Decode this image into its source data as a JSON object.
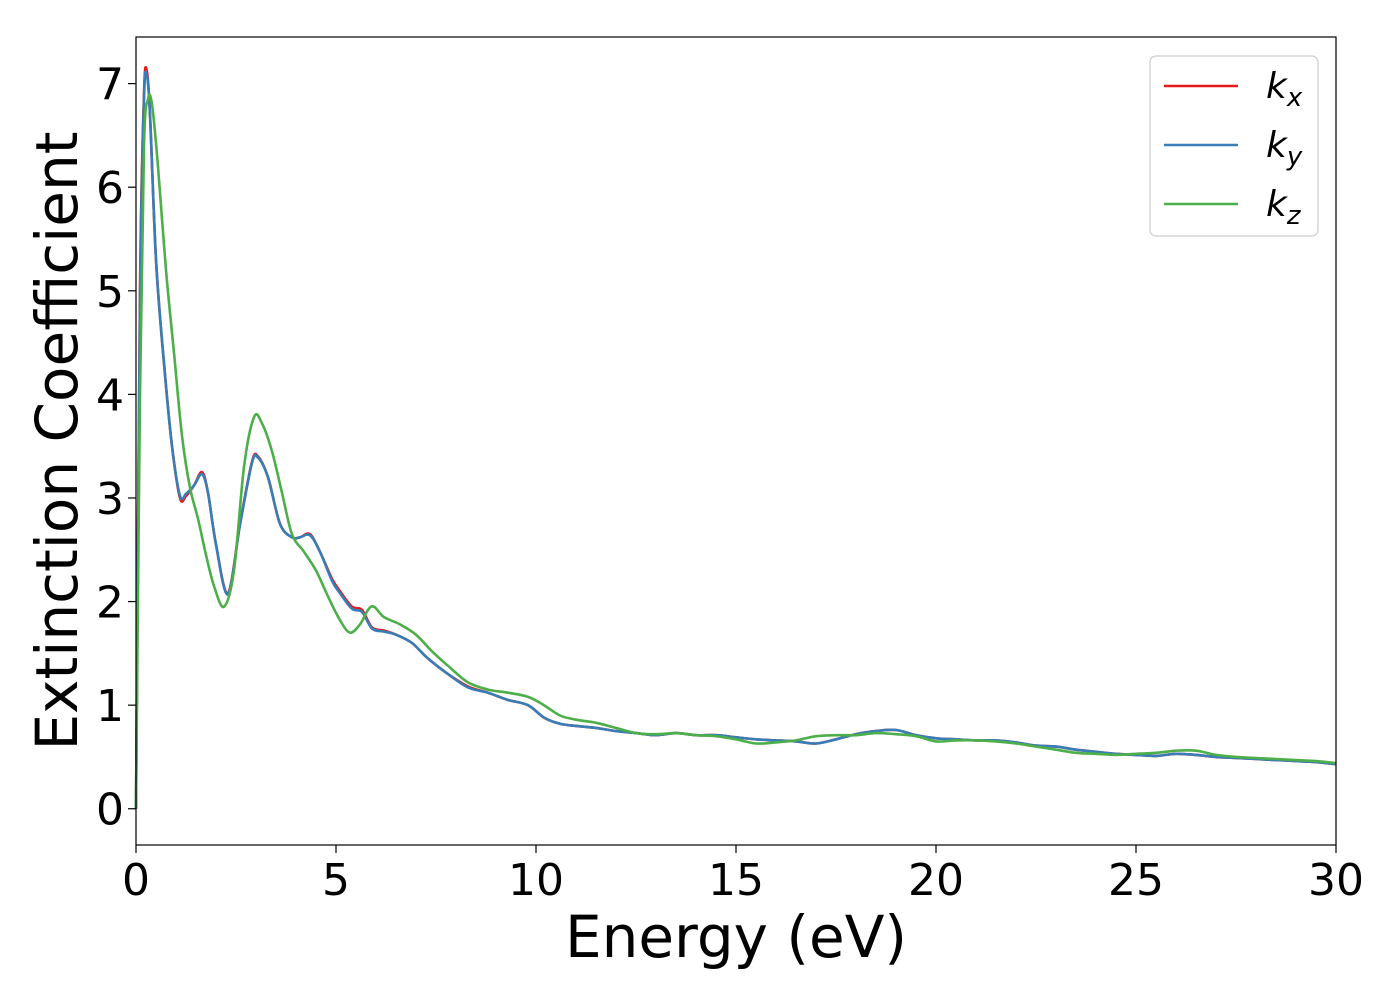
{
  "chart_data": {
    "type": "line",
    "xlabel": "Energy (eV)",
    "ylabel": "Extinction Coefficient",
    "xlim": [
      0,
      30
    ],
    "ylim": [
      -0.35,
      7.45
    ],
    "x_ticks": [
      "0",
      "5",
      "10",
      "15",
      "20",
      "25",
      "30"
    ],
    "y_ticks": [
      "0",
      "1",
      "2",
      "3",
      "4",
      "5",
      "6",
      "7"
    ],
    "grid": false,
    "legend_position": "top-right",
    "series": [
      {
        "name": "k_x",
        "legend_base": "k",
        "legend_sub": "x",
        "color": "#e41a1c",
        "x": [
          0,
          0.1,
          0.2,
          0.27,
          0.35,
          0.5,
          0.7,
          0.9,
          1.1,
          1.25,
          1.45,
          1.65,
          1.8,
          2.0,
          2.3,
          2.6,
          2.9,
          3.05,
          3.3,
          3.6,
          3.9,
          4.1,
          4.35,
          4.6,
          4.9,
          5.1,
          5.4,
          5.65,
          5.9,
          6.2,
          6.5,
          6.9,
          7.3,
          7.8,
          8.3,
          8.8,
          9.3,
          9.8,
          10.2,
          10.6,
          11.0,
          11.5,
          12.0,
          12.5,
          13.0,
          13.5,
          14.0,
          14.5,
          15.0,
          15.5,
          16.0,
          16.5,
          17.0,
          17.5,
          18.0,
          18.5,
          19.0,
          19.5,
          20.0,
          20.5,
          21.0,
          21.5,
          22.0,
          22.5,
          23.0,
          23.5,
          24.0,
          24.5,
          25.0,
          25.5,
          26.0,
          26.5,
          27.0,
          27.5,
          28.0,
          28.5,
          29.0,
          29.5,
          30.0
        ],
        "y": [
          0.0,
          5.0,
          6.9,
          7.12,
          6.7,
          5.3,
          4.3,
          3.5,
          3.0,
          3.02,
          3.12,
          3.25,
          3.05,
          2.55,
          2.08,
          2.75,
          3.35,
          3.4,
          3.2,
          2.75,
          2.62,
          2.62,
          2.65,
          2.48,
          2.22,
          2.1,
          1.95,
          1.92,
          1.75,
          1.72,
          1.68,
          1.6,
          1.45,
          1.3,
          1.18,
          1.12,
          1.05,
          1.0,
          0.88,
          0.82,
          0.8,
          0.78,
          0.75,
          0.73,
          0.71,
          0.73,
          0.71,
          0.71,
          0.69,
          0.67,
          0.66,
          0.65,
          0.63,
          0.67,
          0.72,
          0.75,
          0.76,
          0.71,
          0.68,
          0.67,
          0.66,
          0.66,
          0.64,
          0.61,
          0.6,
          0.57,
          0.55,
          0.53,
          0.52,
          0.51,
          0.53,
          0.52,
          0.5,
          0.49,
          0.48,
          0.47,
          0.46,
          0.45,
          0.43
        ]
      },
      {
        "name": "k_y",
        "legend_base": "k",
        "legend_sub": "y",
        "color": "#377eb8",
        "x": [
          0,
          0.1,
          0.2,
          0.27,
          0.35,
          0.5,
          0.7,
          0.9,
          1.1,
          1.25,
          1.45,
          1.65,
          1.8,
          2.0,
          2.3,
          2.6,
          2.9,
          3.05,
          3.3,
          3.6,
          3.9,
          4.1,
          4.35,
          4.6,
          4.9,
          5.1,
          5.4,
          5.65,
          5.9,
          6.2,
          6.5,
          6.9,
          7.3,
          7.8,
          8.3,
          8.8,
          9.3,
          9.8,
          10.2,
          10.6,
          11.0,
          11.5,
          12.0,
          12.5,
          13.0,
          13.5,
          14.0,
          14.5,
          15.0,
          15.5,
          16.0,
          16.5,
          17.0,
          17.5,
          18.0,
          18.5,
          19.0,
          19.5,
          20.0,
          20.5,
          21.0,
          21.5,
          22.0,
          22.5,
          23.0,
          23.5,
          24.0,
          24.5,
          25.0,
          25.5,
          26.0,
          26.5,
          27.0,
          27.5,
          28.0,
          28.5,
          29.0,
          29.5,
          30.0
        ],
        "y": [
          0.0,
          4.9,
          6.85,
          7.08,
          6.7,
          5.3,
          4.3,
          3.5,
          3.02,
          3.04,
          3.12,
          3.23,
          3.05,
          2.55,
          2.07,
          2.74,
          3.34,
          3.39,
          3.2,
          2.75,
          2.62,
          2.62,
          2.64,
          2.48,
          2.2,
          2.08,
          1.93,
          1.9,
          1.74,
          1.71,
          1.68,
          1.6,
          1.45,
          1.3,
          1.17,
          1.12,
          1.05,
          1.0,
          0.88,
          0.82,
          0.8,
          0.78,
          0.75,
          0.73,
          0.71,
          0.73,
          0.71,
          0.71,
          0.69,
          0.67,
          0.66,
          0.65,
          0.63,
          0.67,
          0.72,
          0.75,
          0.76,
          0.71,
          0.68,
          0.67,
          0.66,
          0.66,
          0.64,
          0.61,
          0.6,
          0.57,
          0.55,
          0.53,
          0.52,
          0.51,
          0.53,
          0.52,
          0.5,
          0.49,
          0.48,
          0.47,
          0.46,
          0.45,
          0.43
        ]
      },
      {
        "name": "k_z",
        "legend_base": "k",
        "legend_sub": "z",
        "color": "#4daf4a",
        "x": [
          0,
          0.1,
          0.2,
          0.3,
          0.4,
          0.55,
          0.75,
          0.95,
          1.15,
          1.35,
          1.55,
          1.75,
          1.95,
          2.2,
          2.45,
          2.7,
          2.95,
          3.15,
          3.4,
          3.65,
          3.9,
          4.2,
          4.5,
          4.8,
          5.1,
          5.35,
          5.6,
          5.8,
          5.95,
          6.2,
          6.6,
          7.0,
          7.4,
          7.8,
          8.3,
          8.8,
          9.3,
          9.8,
          10.2,
          10.6,
          11.0,
          11.5,
          12.0,
          12.5,
          13.0,
          13.5,
          14.0,
          14.5,
          15.0,
          15.5,
          16.0,
          16.5,
          17.0,
          17.5,
          18.0,
          18.5,
          19.0,
          19.5,
          20.0,
          20.5,
          21.0,
          21.5,
          22.0,
          22.5,
          23.0,
          23.5,
          24.0,
          24.5,
          25.0,
          25.5,
          26.0,
          26.5,
          27.0,
          27.5,
          28.0,
          28.5,
          29.0,
          29.5,
          30.0
        ],
        "y": [
          0.0,
          4.0,
          6.4,
          6.85,
          6.8,
          6.2,
          5.2,
          4.4,
          3.6,
          3.1,
          2.8,
          2.45,
          2.15,
          1.95,
          2.3,
          3.3,
          3.78,
          3.72,
          3.45,
          3.05,
          2.65,
          2.48,
          2.3,
          2.05,
          1.82,
          1.7,
          1.78,
          1.92,
          1.95,
          1.85,
          1.78,
          1.68,
          1.52,
          1.38,
          1.22,
          1.15,
          1.12,
          1.08,
          1.0,
          0.9,
          0.86,
          0.83,
          0.78,
          0.73,
          0.72,
          0.73,
          0.71,
          0.7,
          0.67,
          0.63,
          0.64,
          0.66,
          0.7,
          0.71,
          0.71,
          0.73,
          0.72,
          0.7,
          0.65,
          0.66,
          0.66,
          0.65,
          0.63,
          0.6,
          0.57,
          0.54,
          0.53,
          0.52,
          0.53,
          0.54,
          0.56,
          0.56,
          0.52,
          0.5,
          0.49,
          0.48,
          0.47,
          0.46,
          0.44
        ]
      }
    ]
  }
}
